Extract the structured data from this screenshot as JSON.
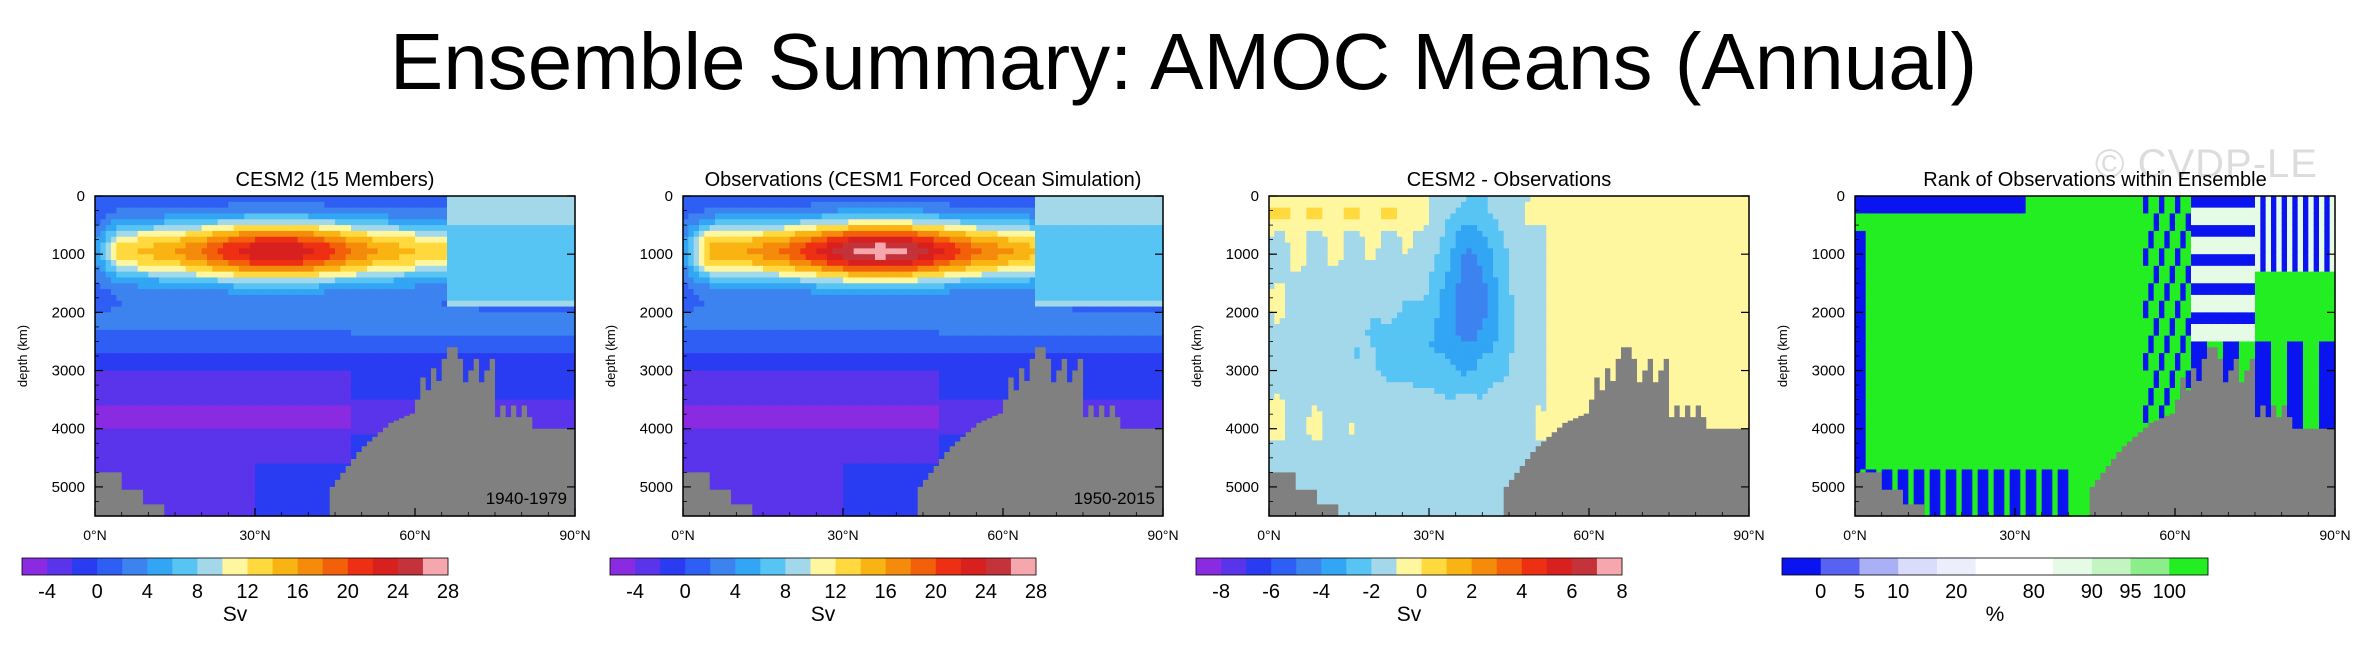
{
  "title": "Ensemble Summary: AMOC Means (Annual)",
  "watermark": "© CVDP-LE",
  "chart_data": [
    {
      "type": "heatmap",
      "title": "CESM2 (15 Members)",
      "ylabel": "depth (km)",
      "xlabel": "",
      "x_ticks": [
        "0°N",
        "30°N",
        "60°N",
        "90°N"
      ],
      "y_ticks": [
        "0",
        "1000",
        "2000",
        "3000",
        "4000",
        "5000"
      ],
      "xlim": [
        0,
        90
      ],
      "ylim": [
        5500,
        0
      ],
      "annotation": "1940-1979",
      "field": "amoc",
      "colorbar": {
        "label": "Sv",
        "tick_labels": [
          "-4",
          "0",
          "4",
          "8",
          "12",
          "16",
          "20",
          "24",
          "28"
        ],
        "colors": [
          "#8a2be2",
          "#5a34ea",
          "#2a3cf2",
          "#2f5ef5",
          "#3d83f0",
          "#32a5f4",
          "#57c4f4",
          "#a3d8ea",
          "#fff79f",
          "#ffd93d",
          "#f9b413",
          "#f58b0a",
          "#f3600a",
          "#ed2f13",
          "#d8211e",
          "#c43339",
          "#f6a7ad"
        ]
      }
    },
    {
      "type": "heatmap",
      "title": "Observations (CESM1 Forced Ocean Simulation)",
      "ylabel": "depth (km)",
      "xlabel": "",
      "x_ticks": [
        "0°N",
        "30°N",
        "60°N",
        "90°N"
      ],
      "y_ticks": [
        "0",
        "1000",
        "2000",
        "3000",
        "4000",
        "5000"
      ],
      "xlim": [
        0,
        90
      ],
      "ylim": [
        5500,
        0
      ],
      "annotation": "1950-2015",
      "field": "amoc_obs",
      "colorbar": {
        "label": "Sv",
        "tick_labels": [
          "-4",
          "0",
          "4",
          "8",
          "12",
          "16",
          "20",
          "24",
          "28"
        ],
        "colors": [
          "#8a2be2",
          "#5a34ea",
          "#2a3cf2",
          "#2f5ef5",
          "#3d83f0",
          "#32a5f4",
          "#57c4f4",
          "#a3d8ea",
          "#fff79f",
          "#ffd93d",
          "#f9b413",
          "#f58b0a",
          "#f3600a",
          "#ed2f13",
          "#d8211e",
          "#c43339",
          "#f6a7ad"
        ]
      }
    },
    {
      "type": "heatmap",
      "title": "CESM2 - Observations",
      "ylabel": "depth (km)",
      "xlabel": "",
      "x_ticks": [
        "0°N",
        "30°N",
        "60°N",
        "90°N"
      ],
      "y_ticks": [
        "0",
        "1000",
        "2000",
        "3000",
        "4000",
        "5000"
      ],
      "xlim": [
        0,
        90
      ],
      "ylim": [
        5500,
        0
      ],
      "annotation": "",
      "field": "diff",
      "colorbar": {
        "label": "Sv",
        "tick_labels": [
          "-8",
          "-6",
          "-4",
          "-2",
          "0",
          "2",
          "4",
          "6",
          "8"
        ],
        "colors": [
          "#8a2be2",
          "#5a34ea",
          "#2a3cf2",
          "#2f5ef5",
          "#3d83f0",
          "#32a5f4",
          "#57c4f4",
          "#a3d8ea",
          "#fff79f",
          "#ffd93d",
          "#f9b413",
          "#f58b0a",
          "#f3600a",
          "#ed2f13",
          "#d8211e",
          "#c43339",
          "#f6a7ad"
        ]
      }
    },
    {
      "type": "heatmap",
      "title": "Rank of Observations within Ensemble",
      "ylabel": "depth (km)",
      "xlabel": "",
      "x_ticks": [
        "0°N",
        "30°N",
        "60°N",
        "90°N"
      ],
      "y_ticks": [
        "0",
        "1000",
        "2000",
        "3000",
        "4000",
        "5000"
      ],
      "xlim": [
        0,
        90
      ],
      "ylim": [
        5500,
        0
      ],
      "annotation": "",
      "field": "rank",
      "colorbar": {
        "label": "%",
        "tick_labels": [
          "0",
          "5",
          "10",
          "20",
          "80",
          "90",
          "95",
          "100"
        ],
        "colors": [
          "#0a14f0",
          "#5862f2",
          "#aab0f6",
          "#d9dcfa",
          "#eceefc",
          "#ffffff",
          "#ffffff",
          "#e6fbe6",
          "#c3f5c3",
          "#8bee8b",
          "#22ee22"
        ]
      }
    }
  ]
}
